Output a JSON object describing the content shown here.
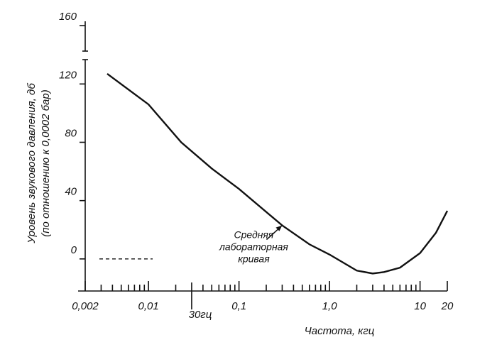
{
  "chart_data": {
    "type": "line",
    "y_label_lines": [
      "Уровень звукового давления, дб",
      "(по отношению к 0,0002 бар)"
    ],
    "x_label": "Частота, кгц",
    "x": [
      0.0035,
      0.01,
      0.023,
      0.05,
      0.1,
      0.3,
      0.6,
      1,
      2,
      3,
      4,
      6,
      10,
      15,
      20
    ],
    "series": [
      {
        "name": "Средняя лабораторная кривая",
        "color": "#111111",
        "values": [
          127,
          106,
          80,
          62,
          48,
          23,
          10,
          3,
          -8,
          -10,
          -9,
          -6,
          4,
          18,
          33
        ]
      }
    ],
    "annotation_lines": [
      "Средняя",
      "лабораторная",
      "кривая"
    ],
    "annotation_point": 5,
    "marker": {
      "value": 0.03,
      "label": "30гц"
    },
    "reference_line": 0,
    "xscale": "log",
    "xlim": [
      0.002,
      20
    ],
    "ylim": [
      -22,
      163
    ],
    "xticks": [
      {
        "value": 0.002,
        "label": "0,002"
      },
      {
        "value": 0.01,
        "label": "0,01"
      },
      {
        "value": 0.1,
        "label": "0,1"
      },
      {
        "value": 1,
        "label": "1,0"
      },
      10,
      20
    ],
    "xminor_ticks": [
      0.003,
      0.004,
      0.005,
      0.006,
      0.007,
      0.008,
      0.009,
      0.02,
      0.04,
      0.05,
      0.06,
      0.07,
      0.08,
      0.09,
      0.2,
      0.3,
      0.4,
      0.5,
      0.6,
      0.7,
      0.8,
      0.9,
      2,
      3,
      4,
      5,
      6,
      7,
      8,
      9
    ],
    "yticks": [
      0,
      40,
      80,
      120,
      160
    ],
    "grid": false
  }
}
